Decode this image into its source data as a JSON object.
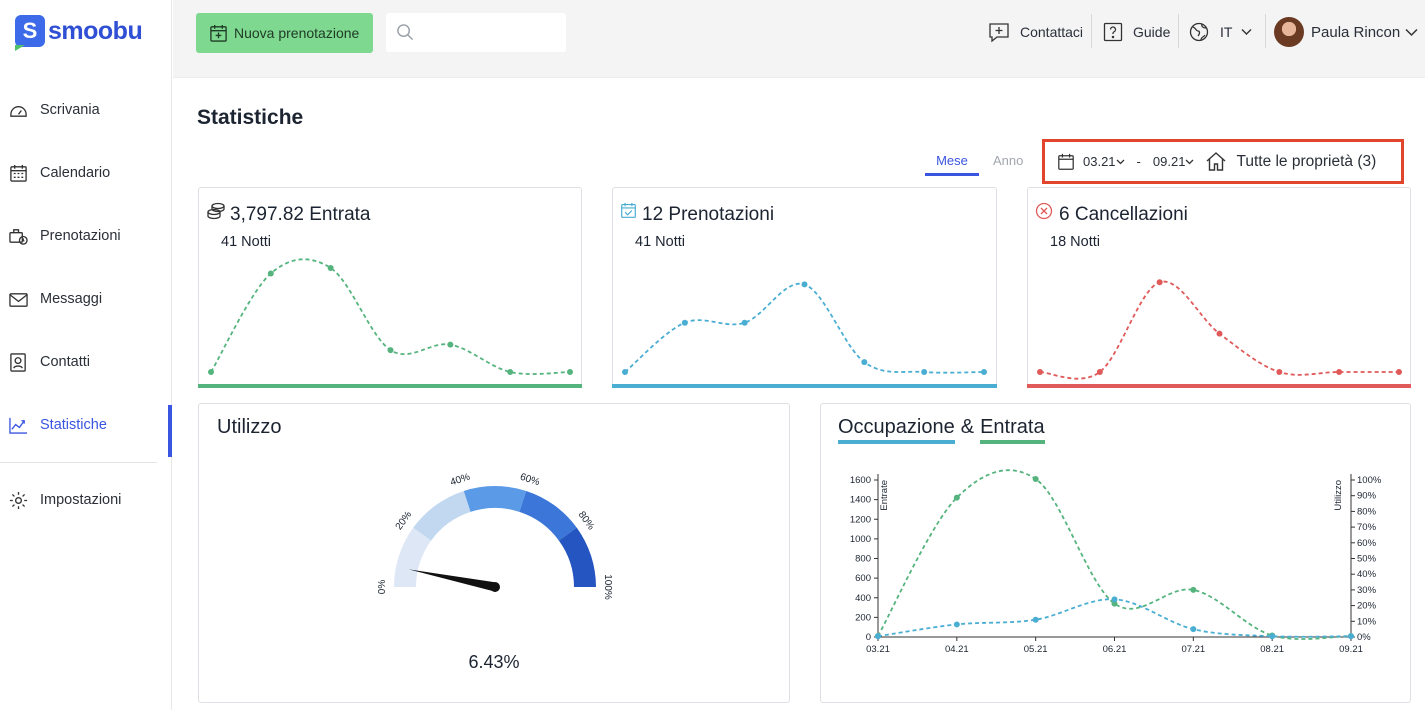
{
  "app": {
    "name": "smoobu",
    "logo_letter": "S"
  },
  "sidebar": {
    "items": [
      {
        "label": "Scrivania",
        "icon": "dashboard-icon"
      },
      {
        "label": "Calendario",
        "icon": "calendar-icon"
      },
      {
        "label": "Prenotazioni",
        "icon": "booking-icon"
      },
      {
        "label": "Messaggi",
        "icon": "mail-icon"
      },
      {
        "label": "Contatti",
        "icon": "contact-icon"
      },
      {
        "label": "Statistiche",
        "icon": "chart-icon",
        "active": true
      },
      {
        "label": "Impostazioni",
        "icon": "gear-icon"
      }
    ]
  },
  "header": {
    "new_booking_label": "Nuova prenotazione",
    "search_placeholder": "",
    "contact_label": "Contattaci",
    "guide_label": "Guide",
    "language": "IT",
    "user_name": "Paula Rincon"
  },
  "page": {
    "title": "Statistiche",
    "tabs": [
      {
        "label": "Mese",
        "active": true
      },
      {
        "label": "Anno",
        "active": false
      }
    ],
    "filter": {
      "date_from": "03.21",
      "date_sep": "-",
      "date_to": "09.21",
      "property_label": "Tutte le proprietà (3)"
    }
  },
  "stats": [
    {
      "title": "3,797.82 Entrata",
      "subtitle": "41 Notti",
      "color": "#55b47e",
      "icon": "coins-icon",
      "values": [
        1,
        10,
        10.5,
        3,
        3.5,
        1,
        1
      ]
    },
    {
      "title": "12 Prenotazioni",
      "subtitle": "41 Notti",
      "color": "#4aaed3",
      "icon": "calendar-check-icon",
      "values": [
        1,
        5.5,
        5.5,
        9,
        1.9,
        1,
        1
      ]
    },
    {
      "title": "6 Cancellazioni",
      "subtitle": "18 Notti",
      "color": "#e05a5a",
      "icon": "cancel-circle-icon",
      "values": [
        1,
        1,
        9.2,
        4.5,
        1,
        1,
        1
      ]
    }
  ],
  "utilizzo": {
    "title": "Utilizzo",
    "value_label": "6.43%",
    "value": 6.43,
    "ticks": [
      "0%",
      "20%",
      "40%",
      "60%",
      "80%",
      "100%"
    ],
    "band_colors": [
      "#dde7f5",
      "#c2d8f0",
      "#5b9ae6",
      "#3b76d8",
      "#2455c0"
    ]
  },
  "occupazione": {
    "title_a": "Occupazione",
    "title_amp": "&",
    "title_b": "Entrata",
    "color_a": "#4aaed3",
    "color_b": "#55b47e"
  },
  "chart_data": {
    "type": "line",
    "x": [
      "03.21",
      "04.21",
      "05.21",
      "06.21",
      "07.21",
      "08.21",
      "09.21"
    ],
    "ylabel": "Entrate",
    "y2label": "Utilizzo",
    "ylim": [
      0,
      1600
    ],
    "y_ticks": [
      "0",
      "200",
      "400",
      "600",
      "800",
      "1000",
      "1200",
      "1400",
      "1600"
    ],
    "y2lim": [
      0,
      100
    ],
    "y2_ticks": [
      "0%",
      "10%",
      "20%",
      "30%",
      "40%",
      "50%",
      "60%",
      "70%",
      "80%",
      "90%",
      "100%"
    ],
    "series": [
      {
        "axis": "left",
        "color": "#55b47e",
        "values": [
          10,
          1420,
          1610,
          340,
          480,
          15,
          10
        ]
      },
      {
        "axis": "right",
        "color": "#4aaed3",
        "values": [
          0.5,
          8,
          11,
          24,
          5,
          0.5,
          0.5
        ]
      }
    ]
  }
}
